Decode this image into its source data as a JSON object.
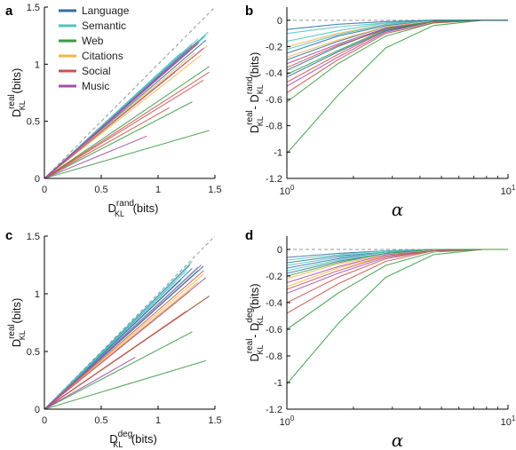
{
  "colors": {
    "language": "#2f6e9f",
    "semantic": "#4ec3c1",
    "web": "#3b9a43",
    "citations": "#f5b547",
    "social": "#c9544c",
    "music": "#a64ca8",
    "reference": "#999999",
    "axis": "#000000"
  },
  "chart_data": [
    {
      "panel": "a",
      "type": "line",
      "xlabel": {
        "main": "D",
        "sup": "rand",
        "sub": "KL",
        "unit": "(bits)"
      },
      "ylabel": {
        "main": "D",
        "sup": "real",
        "sub": "KL",
        "unit": "(bits)"
      },
      "xlim": [
        0,
        1.5
      ],
      "ylim": [
        0,
        1.5
      ],
      "xticks": [
        "0",
        "0.5",
        "1",
        "1.5"
      ],
      "yticks": [
        "0",
        "0.5",
        "1",
        "1.5"
      ],
      "legend": {
        "placement": "top-left",
        "entries": [
          "Language",
          "Semantic",
          "Web",
          "Citations",
          "Social",
          "Music"
        ]
      },
      "reference_line": "y = x",
      "lines": [
        {
          "group": "language",
          "x_end": 1.4,
          "y_end": 1.24
        },
        {
          "group": "language",
          "x_end": 1.38,
          "y_end": 1.22
        },
        {
          "group": "language",
          "x_end": 1.42,
          "y_end": 1.21
        },
        {
          "group": "language",
          "x_end": 1.36,
          "y_end": 1.19
        },
        {
          "group": "language",
          "x_end": 1.3,
          "y_end": 1.16
        },
        {
          "group": "language",
          "x_end": 1.25,
          "y_end": 1.13
        },
        {
          "group": "semantic",
          "x_end": 1.44,
          "y_end": 1.28
        },
        {
          "group": "semantic",
          "x_end": 1.42,
          "y_end": 1.25
        },
        {
          "group": "semantic",
          "x_end": 1.35,
          "y_end": 1.22
        },
        {
          "group": "semantic",
          "x_end": 1.3,
          "y_end": 1.18
        },
        {
          "group": "semantic",
          "x_end": 1.2,
          "y_end": 1.1
        },
        {
          "group": "web",
          "x_end": 1.45,
          "y_end": 0.98
        },
        {
          "group": "web",
          "x_end": 1.45,
          "y_end": 0.42
        },
        {
          "group": "web",
          "x_end": 1.3,
          "y_end": 0.67
        },
        {
          "group": "web",
          "x_end": 1.15,
          "y_end": 0.93
        },
        {
          "group": "citations",
          "x_end": 1.43,
          "y_end": 1.16
        },
        {
          "group": "citations",
          "x_end": 1.38,
          "y_end": 1.08
        },
        {
          "group": "citations",
          "x_end": 1.32,
          "y_end": 1.1
        },
        {
          "group": "citations",
          "x_end": 1.25,
          "y_end": 1.02
        },
        {
          "group": "social",
          "x_end": 1.4,
          "y_end": 0.86
        },
        {
          "group": "social",
          "x_end": 1.45,
          "y_end": 0.93
        },
        {
          "group": "social",
          "x_end": 1.35,
          "y_end": 1.18
        },
        {
          "group": "social",
          "x_end": 1.1,
          "y_end": 0.62
        },
        {
          "group": "music",
          "x_end": 1.4,
          "y_end": 1.14
        },
        {
          "group": "music",
          "x_end": 1.35,
          "y_end": 1.2
        },
        {
          "group": "music",
          "x_end": 0.9,
          "y_end": 0.37
        },
        {
          "group": "music",
          "x_end": 1.28,
          "y_end": 1.12
        }
      ]
    },
    {
      "panel": "b",
      "type": "line",
      "xscale": "log",
      "xlabel": {
        "main": "α"
      },
      "ylabel": {
        "main1": "D",
        "sup1": "real",
        "sub1": "KL",
        "sep": "- D",
        "sup2": "rand",
        "sub2": "KL",
        "unit": "(bits)"
      },
      "xlim": [
        1,
        10
      ],
      "ylim": [
        -1.2,
        0.1
      ],
      "xticks": [
        {
          "base": "10",
          "exp": "0"
        },
        {
          "base": "10",
          "exp": "1"
        }
      ],
      "yticks": [
        "0",
        "-0.2",
        "-0.4",
        "-0.6",
        "-0.8",
        "-1",
        "-1.2"
      ],
      "alpha_values": [
        1,
        1.7,
        2.8,
        4.6,
        7.7,
        10
      ],
      "reference_line": "y = 0",
      "lines": [
        {
          "group": "web",
          "values": [
            -1.01,
            -0.57,
            -0.21,
            -0.04,
            0,
            0
          ]
        },
        {
          "group": "web",
          "values": [
            -0.62,
            -0.33,
            -0.12,
            -0.02,
            0,
            0
          ]
        },
        {
          "group": "social",
          "values": [
            -0.55,
            -0.3,
            -0.1,
            -0.02,
            0,
            0
          ]
        },
        {
          "group": "social",
          "values": [
            -0.47,
            -0.26,
            -0.08,
            -0.01,
            0,
            0
          ]
        },
        {
          "group": "music",
          "values": [
            -0.5,
            -0.28,
            -0.09,
            -0.01,
            0,
            0
          ]
        },
        {
          "group": "language",
          "values": [
            -0.43,
            -0.24,
            -0.08,
            -0.01,
            0,
            0
          ]
        },
        {
          "group": "language",
          "values": [
            -0.38,
            -0.2,
            -0.06,
            -0.01,
            0,
            0
          ]
        },
        {
          "group": "language",
          "values": [
            -0.3,
            -0.16,
            -0.05,
            -0.01,
            0,
            0
          ]
        },
        {
          "group": "language",
          "values": [
            -0.25,
            -0.12,
            -0.04,
            0,
            0,
            0
          ]
        },
        {
          "group": "citations",
          "values": [
            -0.28,
            -0.15,
            -0.05,
            -0.01,
            0,
            0
          ]
        },
        {
          "group": "citations",
          "values": [
            -0.2,
            -0.1,
            -0.03,
            0,
            0,
            0
          ]
        },
        {
          "group": "semantic",
          "values": [
            -0.16,
            -0.08,
            -0.02,
            0,
            0,
            0
          ]
        },
        {
          "group": "semantic",
          "values": [
            -0.1,
            -0.05,
            -0.02,
            0,
            0,
            0
          ]
        },
        {
          "group": "semantic",
          "values": [
            -0.22,
            -0.11,
            -0.03,
            0,
            0,
            0
          ]
        },
        {
          "group": "music",
          "values": [
            -0.33,
            -0.18,
            -0.06,
            -0.01,
            0,
            0
          ]
        },
        {
          "group": "social",
          "values": [
            -0.36,
            -0.19,
            -0.07,
            -0.01,
            0,
            0
          ]
        },
        {
          "group": "web",
          "values": [
            -0.41,
            -0.23,
            -0.07,
            -0.01,
            0,
            0
          ]
        },
        {
          "group": "language",
          "values": [
            -0.07,
            -0.03,
            -0.01,
            0,
            0,
            0
          ]
        }
      ]
    },
    {
      "panel": "c",
      "type": "line",
      "xlabel": {
        "main": "D",
        "sup": "deg",
        "sub": "KL",
        "unit": "(bits)"
      },
      "ylabel": {
        "main": "D",
        "sup": "real",
        "sub": "KL",
        "unit": "(bits)"
      },
      "xlim": [
        0,
        1.5
      ],
      "ylim": [
        0,
        1.5
      ],
      "xticks": [
        "0",
        "0.5",
        "1",
        "1.5"
      ],
      "yticks": [
        "0",
        "0.5",
        "1",
        "1.5"
      ],
      "reference_line": "y = x",
      "lines": [
        {
          "group": "language",
          "x_end": 1.28,
          "y_end": 1.25
        },
        {
          "group": "language",
          "x_end": 1.3,
          "y_end": 1.22
        },
        {
          "group": "language",
          "x_end": 1.4,
          "y_end": 1.24
        },
        {
          "group": "language",
          "x_end": 1.35,
          "y_end": 1.2
        },
        {
          "group": "language",
          "x_end": 1.2,
          "y_end": 1.12
        },
        {
          "group": "semantic",
          "x_end": 1.3,
          "y_end": 1.28
        },
        {
          "group": "semantic",
          "x_end": 1.25,
          "y_end": 1.2
        },
        {
          "group": "semantic",
          "x_end": 1.15,
          "y_end": 1.1
        },
        {
          "group": "semantic",
          "x_end": 1.35,
          "y_end": 1.23
        },
        {
          "group": "web",
          "x_end": 1.42,
          "y_end": 0.42
        },
        {
          "group": "web",
          "x_end": 1.3,
          "y_end": 0.67
        },
        {
          "group": "web",
          "x_end": 1.45,
          "y_end": 0.98
        },
        {
          "group": "citations",
          "x_end": 1.4,
          "y_end": 1.17
        },
        {
          "group": "citations",
          "x_end": 1.35,
          "y_end": 1.1
        },
        {
          "group": "citations",
          "x_end": 1.28,
          "y_end": 1.02
        },
        {
          "group": "social",
          "x_end": 1.45,
          "y_end": 0.98
        },
        {
          "group": "social",
          "x_end": 1.4,
          "y_end": 1.2
        },
        {
          "group": "social",
          "x_end": 1.25,
          "y_end": 0.85
        },
        {
          "group": "music",
          "x_end": 1.42,
          "y_end": 1.14
        },
        {
          "group": "music",
          "x_end": 1.38,
          "y_end": 1.25
        },
        {
          "group": "music",
          "x_end": 0.8,
          "y_end": 0.45
        }
      ]
    },
    {
      "panel": "d",
      "type": "line",
      "xscale": "log",
      "xlabel": {
        "main": "α"
      },
      "ylabel": {
        "main1": "D",
        "sup1": "real",
        "sub1": "KL",
        "sep": "- D",
        "sup2": "deg",
        "sub2": "KL",
        "unit": "(bits)"
      },
      "xlim": [
        1,
        10
      ],
      "ylim": [
        -1.2,
        0.1
      ],
      "xticks": [
        {
          "base": "10",
          "exp": "0"
        },
        {
          "base": "10",
          "exp": "1"
        }
      ],
      "yticks": [
        "0",
        "-0.2",
        "-0.4",
        "-0.6",
        "-0.8",
        "-1",
        "-1.2"
      ],
      "alpha_values": [
        1,
        1.7,
        2.8,
        4.6,
        7.7,
        10
      ],
      "reference_line": "y = 0",
      "lines": [
        {
          "group": "web",
          "values": [
            -1.01,
            -0.56,
            -0.21,
            -0.04,
            0,
            0
          ]
        },
        {
          "group": "web",
          "values": [
            -0.6,
            -0.33,
            -0.12,
            -0.02,
            0,
            0
          ]
        },
        {
          "group": "social",
          "values": [
            -0.48,
            -0.26,
            -0.09,
            -0.01,
            0,
            0
          ]
        },
        {
          "group": "social",
          "values": [
            -0.4,
            -0.21,
            -0.07,
            -0.01,
            0,
            0
          ]
        },
        {
          "group": "music",
          "values": [
            -0.33,
            -0.18,
            -0.06,
            -0.01,
            0,
            0
          ]
        },
        {
          "group": "citations",
          "values": [
            -0.28,
            -0.14,
            -0.05,
            -0.01,
            0,
            0
          ]
        },
        {
          "group": "citations",
          "values": [
            -0.22,
            -0.11,
            -0.04,
            0,
            0,
            0
          ]
        },
        {
          "group": "language",
          "values": [
            -0.18,
            -0.09,
            -0.03,
            0,
            0,
            0
          ]
        },
        {
          "group": "language",
          "values": [
            -0.14,
            -0.07,
            -0.02,
            0,
            0,
            0
          ]
        },
        {
          "group": "language",
          "values": [
            -0.1,
            -0.05,
            -0.02,
            0,
            0,
            0
          ]
        },
        {
          "group": "language",
          "values": [
            -0.06,
            -0.03,
            -0.01,
            0,
            0,
            0
          ]
        },
        {
          "group": "semantic",
          "values": [
            -0.12,
            -0.06,
            -0.02,
            0,
            0,
            0
          ]
        },
        {
          "group": "semantic",
          "values": [
            -0.08,
            -0.04,
            -0.01,
            0,
            0,
            0
          ]
        },
        {
          "group": "semantic",
          "values": [
            -0.16,
            -0.08,
            -0.03,
            0,
            0,
            0
          ]
        },
        {
          "group": "music",
          "values": [
            -0.25,
            -0.13,
            -0.04,
            -0.01,
            0,
            0
          ]
        },
        {
          "group": "social",
          "values": [
            -0.3,
            -0.16,
            -0.05,
            -0.01,
            0,
            0
          ]
        },
        {
          "group": "web",
          "values": [
            -0.2,
            -0.1,
            -0.03,
            0,
            0,
            0
          ]
        }
      ]
    }
  ]
}
